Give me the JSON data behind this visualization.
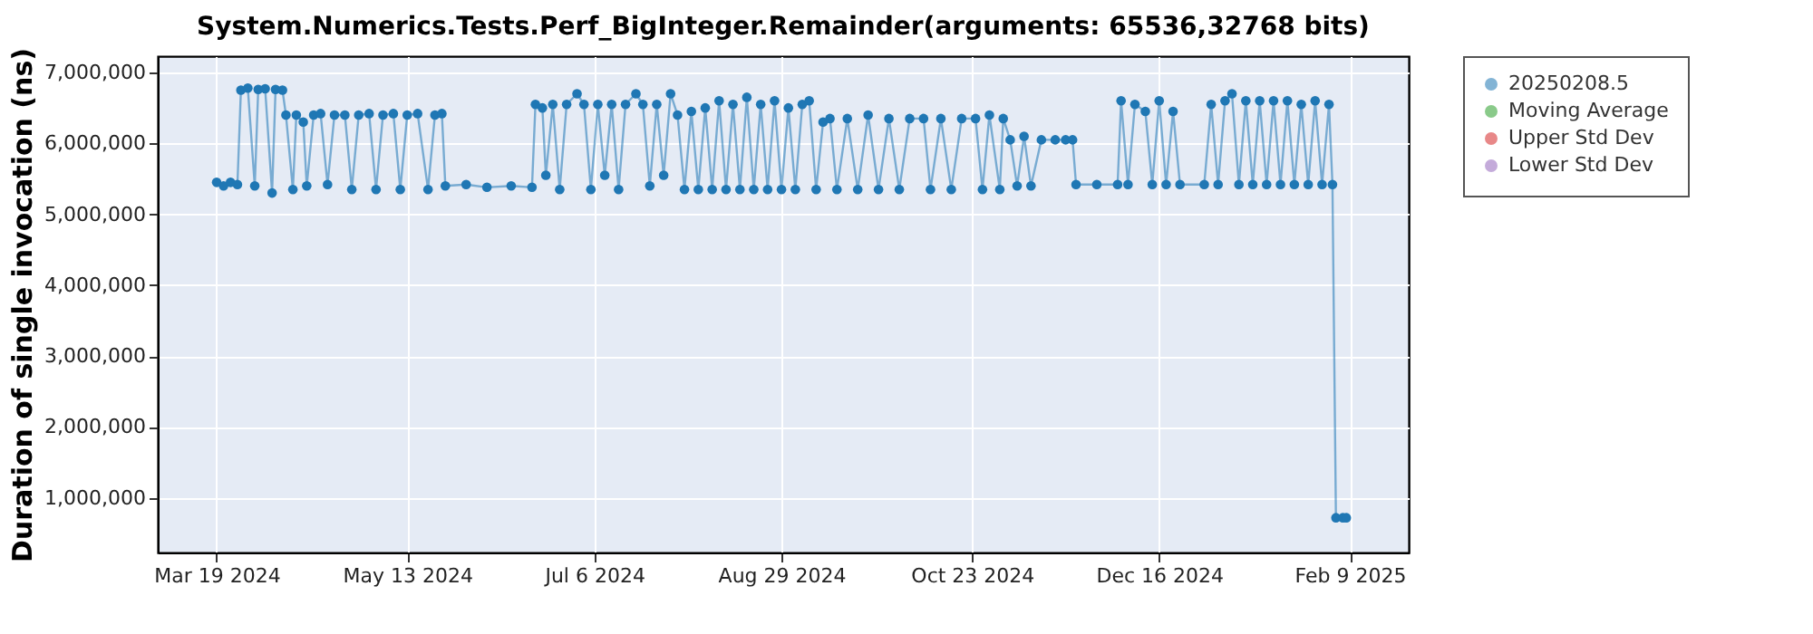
{
  "chart_data": {
    "type": "line",
    "title": "System.Numerics.Tests.Perf_BigInteger.Remainder(arguments: 65536,32768 bits)",
    "ylabel": "Duration of single invocation (ns)",
    "xlim": [
      "2024-03-02",
      "2025-02-26"
    ],
    "xticks": [
      {
        "value": "2024-03-19",
        "label": "Mar 19 2024"
      },
      {
        "value": "2024-05-13",
        "label": "May 13 2024"
      },
      {
        "value": "2024-07-06",
        "label": "Jul 6 2024"
      },
      {
        "value": "2024-08-29",
        "label": "Aug 29 2024"
      },
      {
        "value": "2024-10-23",
        "label": "Oct 23 2024"
      },
      {
        "value": "2024-12-16",
        "label": "Dec 16 2024"
      },
      {
        "value": "2025-02-09",
        "label": "Feb 9 2025"
      }
    ],
    "ylim": [
      230000,
      7230000
    ],
    "yticks": [
      {
        "value": 1000000,
        "label": "1,000,000"
      },
      {
        "value": 2000000,
        "label": "2,000,000"
      },
      {
        "value": 3000000,
        "label": "3,000,000"
      },
      {
        "value": 4000000,
        "label": "4,000,000"
      },
      {
        "value": 5000000,
        "label": "5,000,000"
      },
      {
        "value": 6000000,
        "label": "6,000,000"
      },
      {
        "value": 7000000,
        "label": "7,000,000"
      }
    ],
    "grid": true,
    "legend": "right",
    "marker": "circle",
    "line_style": "solid",
    "series": [
      {
        "name": "20250208.5",
        "color": "#1f77b4",
        "x": [
          "2024-03-19",
          "2024-03-21",
          "2024-03-23",
          "2024-03-25",
          "2024-03-26",
          "2024-03-28",
          "2024-03-30",
          "2024-03-31",
          "2024-04-02",
          "2024-04-04",
          "2024-04-05",
          "2024-04-07",
          "2024-04-08",
          "2024-04-10",
          "2024-04-11",
          "2024-04-13",
          "2024-04-14",
          "2024-04-16",
          "2024-04-18",
          "2024-04-20",
          "2024-04-22",
          "2024-04-25",
          "2024-04-27",
          "2024-04-29",
          "2024-05-02",
          "2024-05-04",
          "2024-05-06",
          "2024-05-09",
          "2024-05-11",
          "2024-05-13",
          "2024-05-16",
          "2024-05-19",
          "2024-05-21",
          "2024-05-23",
          "2024-05-24",
          "2024-05-30",
          "2024-06-05",
          "2024-06-12",
          "2024-06-18",
          "2024-06-19",
          "2024-06-21",
          "2024-06-22",
          "2024-06-24",
          "2024-06-26",
          "2024-06-28",
          "2024-07-01",
          "2024-07-03",
          "2024-07-05",
          "2024-07-07",
          "2024-07-09",
          "2024-07-11",
          "2024-07-13",
          "2024-07-15",
          "2024-07-18",
          "2024-07-20",
          "2024-07-22",
          "2024-07-24",
          "2024-07-26",
          "2024-07-28",
          "2024-07-30",
          "2024-08-01",
          "2024-08-03",
          "2024-08-05",
          "2024-08-07",
          "2024-08-09",
          "2024-08-11",
          "2024-08-13",
          "2024-08-15",
          "2024-08-17",
          "2024-08-19",
          "2024-08-21",
          "2024-08-23",
          "2024-08-25",
          "2024-08-27",
          "2024-08-29",
          "2024-08-31",
          "2024-09-02",
          "2024-09-04",
          "2024-09-06",
          "2024-09-08",
          "2024-09-10",
          "2024-09-12",
          "2024-09-14",
          "2024-09-17",
          "2024-09-20",
          "2024-09-23",
          "2024-09-26",
          "2024-09-29",
          "2024-10-02",
          "2024-10-05",
          "2024-10-09",
          "2024-10-11",
          "2024-10-14",
          "2024-10-17",
          "2024-10-20",
          "2024-10-24",
          "2024-10-26",
          "2024-10-28",
          "2024-10-31",
          "2024-11-01",
          "2024-11-03",
          "2024-11-05",
          "2024-11-07",
          "2024-11-09",
          "2024-11-12",
          "2024-11-16",
          "2024-11-19",
          "2024-11-21",
          "2024-11-22",
          "2024-11-28",
          "2024-12-04",
          "2024-12-05",
          "2024-12-07",
          "2024-12-09",
          "2024-12-12",
          "2024-12-14",
          "2024-12-16",
          "2024-12-18",
          "2024-12-20",
          "2024-12-22",
          "2024-12-29",
          "2024-12-31",
          "2025-01-02",
          "2025-01-04",
          "2025-01-06",
          "2025-01-08",
          "2025-01-10",
          "2025-01-12",
          "2025-01-14",
          "2025-01-16",
          "2025-01-18",
          "2025-01-20",
          "2025-01-22",
          "2025-01-24",
          "2025-01-26",
          "2025-01-28",
          "2025-01-30",
          "2025-02-01",
          "2025-02-03",
          "2025-02-04",
          "2025-02-05",
          "2025-02-07",
          "2025-02-08"
        ],
        "values": [
          5450000,
          5400000,
          5450000,
          5420000,
          6750000,
          6780000,
          5400000,
          6760000,
          6770000,
          5300000,
          6760000,
          6750000,
          6400000,
          5350000,
          6400000,
          6300000,
          5400000,
          6400000,
          6420000,
          5420000,
          6400000,
          6400000,
          5350000,
          6400000,
          6420000,
          5350000,
          6400000,
          6420000,
          5350000,
          6400000,
          6420000,
          5350000,
          6400000,
          6420000,
          5400000,
          5420000,
          5380000,
          5400000,
          5380000,
          6550000,
          6500000,
          5550000,
          6550000,
          5350000,
          6550000,
          6700000,
          6550000,
          5350000,
          6550000,
          5550000,
          6550000,
          5350000,
          6550000,
          6700000,
          6550000,
          5400000,
          6550000,
          5550000,
          6700000,
          6400000,
          5350000,
          6450000,
          5350000,
          6500000,
          5350000,
          6600000,
          5350000,
          6550000,
          5350000,
          6650000,
          5350000,
          6550000,
          5350000,
          6600000,
          5350000,
          6500000,
          5350000,
          6550000,
          6600000,
          5350000,
          6300000,
          6350000,
          5350000,
          6350000,
          5350000,
          6400000,
          5350000,
          6350000,
          5350000,
          6350000,
          6350000,
          5350000,
          6350000,
          5350000,
          6350000,
          6350000,
          5350000,
          6400000,
          5350000,
          6350000,
          6050000,
          5400000,
          6100000,
          5400000,
          6050000,
          6050000,
          6050000,
          6050000,
          5420000,
          5420000,
          5420000,
          6600000,
          5420000,
          6550000,
          6450000,
          5420000,
          6600000,
          5420000,
          6450000,
          5420000,
          5420000,
          6550000,
          5420000,
          6600000,
          6700000,
          5420000,
          6600000,
          5420000,
          6600000,
          5420000,
          6600000,
          5420000,
          6600000,
          5420000,
          6550000,
          5420000,
          6600000,
          5420000,
          6550000,
          5420000,
          720000,
          720000,
          720000
        ]
      },
      {
        "name": "Moving Average",
        "color": "#2ca02c"
      },
      {
        "name": "Upper Std Dev",
        "color": "#d62728"
      },
      {
        "name": "Lower Std Dev",
        "color": "#9467bd"
      }
    ]
  }
}
